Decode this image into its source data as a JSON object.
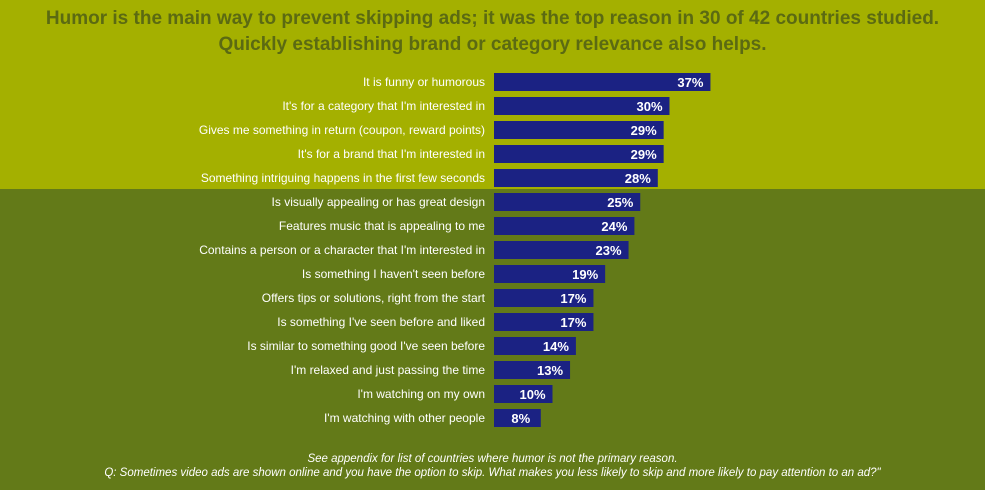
{
  "title": {
    "line1": "Humor is the main way to prevent skipping ads; it was the top reason in 30 of 42 countries studied.",
    "line2": "Quickly establishing brand or category relevance also helps."
  },
  "footnote": {
    "line1": "See appendix for list of countries where humor is not the primary reason.",
    "line2": "Q:  Sometimes video ads are shown online and you have the option to skip. What makes you less likely to skip and more likely to pay attention to an ad?\""
  },
  "colors": {
    "background_top": "#a4b000",
    "background_bottom": "#637a18",
    "bar": "#1b2283",
    "title_text": "#5b6a12",
    "label_text": "#ffffff"
  },
  "chart_data": {
    "type": "bar",
    "orientation": "horizontal",
    "categories": [
      "It is funny or humorous",
      "It's for a category that I'm interested in",
      "Gives me something in return (coupon, reward points)",
      "It's for a brand that I'm interested in",
      "Something intriguing happens in the first few seconds",
      "Is visually appealing or has great design",
      "Features music that is appealing to me",
      "Contains a person or a character that I'm interested in",
      "Is something I haven't seen before",
      "Offers tips or solutions, right from the start",
      "Is something I've seen before and liked",
      "Is similar to something good I've seen before",
      "I'm relaxed and just passing the time",
      "I'm watching on my own",
      "I'm watching with other people"
    ],
    "values": [
      37,
      30,
      29,
      29,
      28,
      25,
      24,
      23,
      19,
      17,
      17,
      14,
      13,
      10,
      8
    ],
    "value_labels": [
      "37%",
      "30%",
      "29%",
      "29%",
      "28%",
      "25%",
      "24%",
      "23%",
      "19%",
      "17%",
      "17%",
      "14%",
      "13%",
      "10%",
      "8%"
    ],
    "unit": "%",
    "grid": false,
    "legend": "none"
  }
}
